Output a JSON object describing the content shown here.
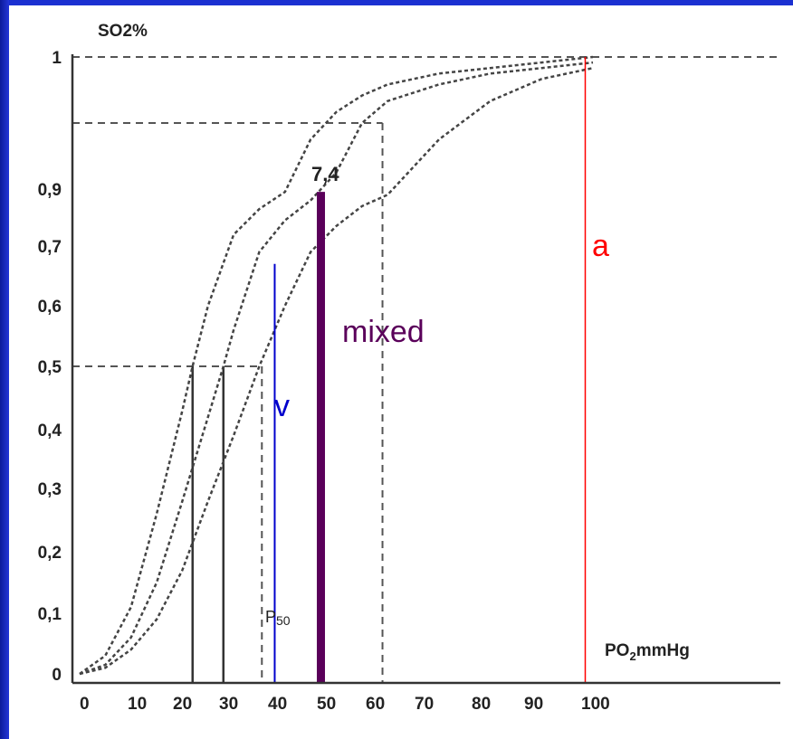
{
  "chart_data": {
    "type": "line",
    "ylabel": "SO2%",
    "xlabel": "PO2mmHg",
    "xlabel_main": "PO",
    "xlabel_sub": "2",
    "xlabel_rest": "mmHg",
    "x_ticks": [
      "0",
      "10",
      "20",
      "30",
      "40",
      "50",
      "60",
      "70",
      "80",
      "90",
      "100"
    ],
    "y_ticks": [
      "0",
      "0,1",
      "0,2",
      "0,3",
      "0,4",
      "0,5",
      "0,6",
      "0,7",
      "0,9",
      "1"
    ],
    "xlim": [
      0,
      100
    ],
    "ylim": [
      0,
      1
    ],
    "series": [
      {
        "x": [
          0,
          5,
          10,
          15,
          20,
          22,
          25,
          30,
          35,
          40,
          45,
          50,
          55,
          60,
          70,
          80,
          90,
          100
        ],
        "y": [
          0,
          0.03,
          0.11,
          0.26,
          0.43,
          0.5,
          0.6,
          0.74,
          0.83,
          0.89,
          0.93,
          0.95,
          0.965,
          0.975,
          0.985,
          0.99,
          0.995,
          1.0
        ]
      },
      {
        "x": [
          0,
          5,
          10,
          15,
          20,
          25,
          28,
          30,
          35,
          40,
          45,
          50,
          55,
          60,
          70,
          80,
          90,
          100
        ],
        "y": [
          0,
          0.015,
          0.06,
          0.15,
          0.28,
          0.42,
          0.5,
          0.56,
          0.69,
          0.79,
          0.86,
          0.91,
          0.94,
          0.96,
          0.975,
          0.985,
          0.99,
          0.995
        ]
      },
      {
        "x": [
          0,
          5,
          10,
          15,
          20,
          25,
          30,
          35,
          40,
          45,
          50,
          55,
          60,
          70,
          80,
          90,
          100
        ],
        "y": [
          0,
          0.01,
          0.04,
          0.09,
          0.17,
          0.28,
          0.39,
          0.5,
          0.6,
          0.69,
          0.77,
          0.84,
          0.88,
          0.93,
          0.96,
          0.98,
          0.99
        ]
      }
    ],
    "curve_label": "7,4",
    "p50_label": "P50",
    "p50_main": "P",
    "p50_sub": "50",
    "p50_values_x": [
      22,
      28,
      35.5
    ],
    "reference_lines": {
      "y50": 0.5,
      "y_high": 0.94,
      "x60": 59
    },
    "markers": [
      {
        "label": "v",
        "x": 38,
        "y_top": 0.67,
        "color": "#0000cc"
      },
      {
        "label": "mixed",
        "x": 47,
        "y_top": 0.89,
        "color": "#5a005a"
      },
      {
        "label": "a",
        "x": 98.5,
        "y_top": 1.0,
        "color": "#ff0000"
      }
    ]
  }
}
